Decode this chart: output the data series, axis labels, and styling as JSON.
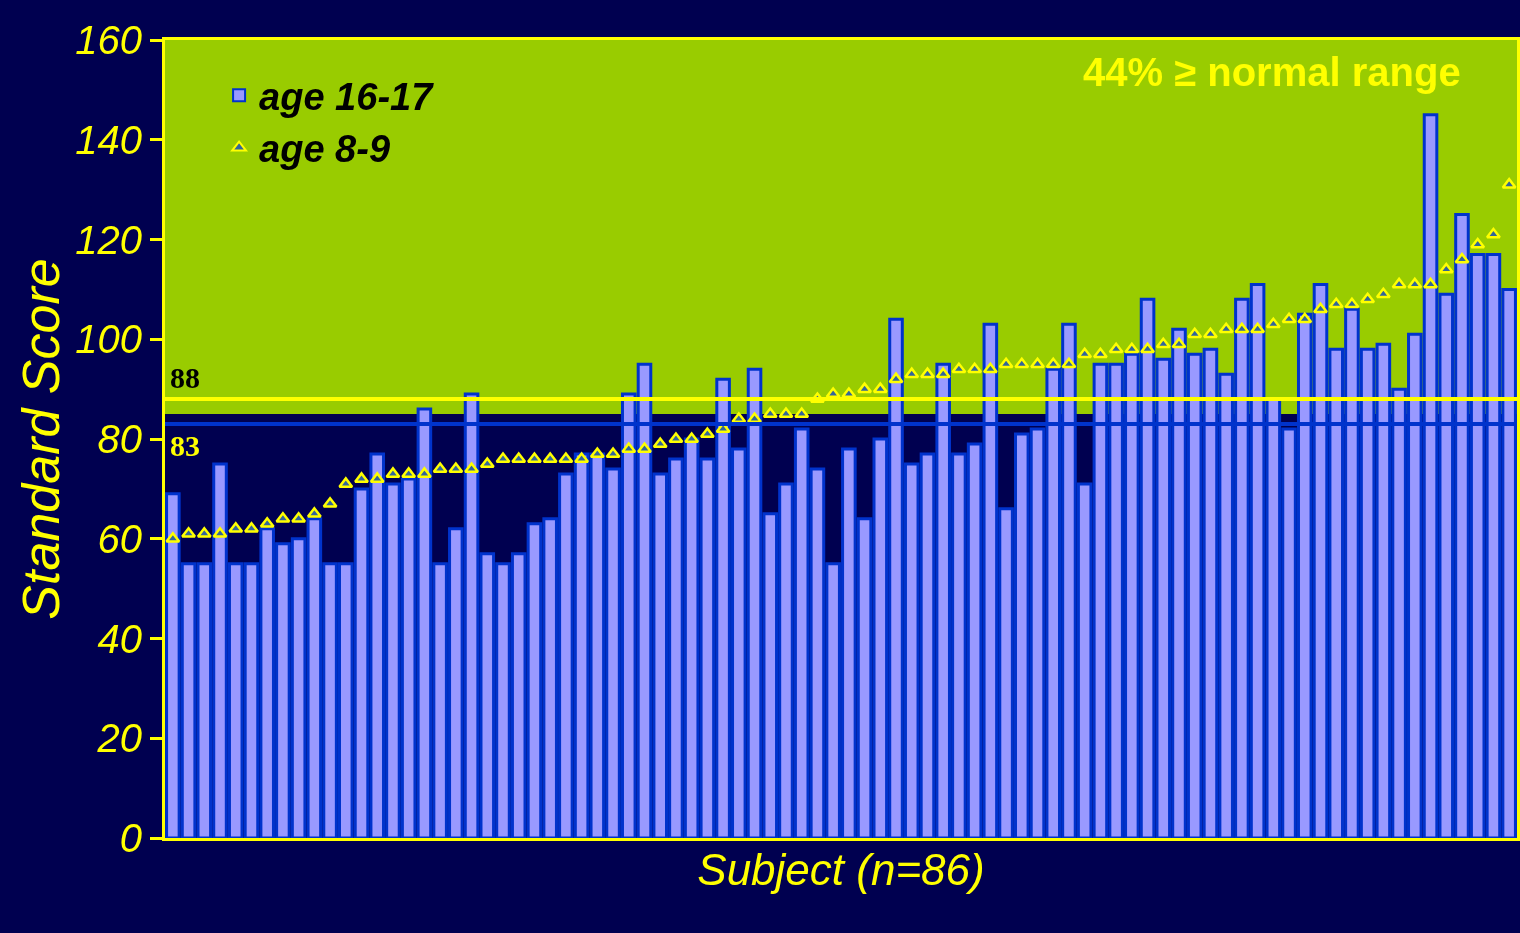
{
  "chart_data": {
    "type": "bar",
    "xlabel": "Subject (n=86)",
    "ylabel": "Standard Score",
    "categories": [
      null,
      null,
      null,
      null,
      null,
      null,
      null,
      null,
      null,
      null,
      null,
      null,
      null,
      null,
      null,
      null,
      null,
      null,
      null,
      null,
      null,
      null,
      null,
      null,
      null,
      null,
      null,
      null,
      null,
      null,
      null,
      null,
      null,
      null,
      null,
      null,
      null,
      null,
      null,
      null,
      null,
      null,
      null,
      null,
      null,
      null,
      null,
      null,
      null,
      null,
      null,
      null,
      null,
      null,
      null,
      null,
      null,
      null,
      null,
      null,
      null,
      null,
      null,
      null,
      null,
      null,
      null,
      null,
      null,
      null,
      null,
      null,
      null,
      null,
      null,
      null,
      null,
      null,
      null,
      null,
      null,
      null,
      null,
      null,
      null,
      null
    ],
    "series": [
      {
        "name": "age 16-17",
        "color": "#9999ff",
        "values": [
          69,
          55,
          55,
          75,
          55,
          55,
          62,
          59,
          60,
          64,
          55,
          55,
          70,
          77,
          71,
          72,
          86,
          55,
          62,
          89,
          57,
          55,
          57,
          63,
          64,
          73,
          77,
          77,
          74,
          89,
          95,
          73,
          76,
          80,
          76,
          92,
          78,
          94,
          65,
          71,
          82,
          74,
          55,
          78,
          64,
          80,
          104,
          75,
          77,
          95,
          77,
          79,
          103,
          66,
          81,
          82,
          94,
          103,
          71,
          95,
          95,
          97,
          108,
          96,
          102,
          97,
          98,
          93,
          108,
          111,
          88,
          82,
          105,
          111,
          98,
          106,
          98,
          99,
          90,
          101,
          145,
          109,
          125,
          117,
          117,
          110
        ]
      },
      {
        "name": "age 8-9",
        "type": "scatter",
        "marker": "triangle",
        "color": "#ffff00",
        "values": [
          60,
          61,
          61,
          61,
          62,
          62,
          63,
          64,
          64,
          65,
          67,
          71,
          72,
          72,
          73,
          73,
          73,
          74,
          74,
          74,
          75,
          76,
          76,
          76,
          76,
          76,
          76,
          77,
          77,
          78,
          78,
          79,
          80,
          80,
          81,
          82,
          84,
          84,
          85,
          85,
          85,
          88,
          89,
          89,
          90,
          90,
          92,
          93,
          93,
          93,
          94,
          94,
          94,
          95,
          95,
          95,
          95,
          95,
          97,
          97,
          98,
          98,
          98,
          99,
          99,
          101,
          101,
          102,
          102,
          102,
          103,
          104,
          104,
          106,
          107,
          107,
          108,
          109,
          111,
          111,
          111,
          114,
          116,
          119,
          121,
          131
        ]
      }
    ],
    "ylim": [
      0,
      160
    ],
    "yticks": [
      0,
      20,
      40,
      60,
      80,
      100,
      120,
      140,
      160
    ],
    "bands": [
      {
        "axis": "y",
        "from": 85,
        "to": 160,
        "color": "#99cc00"
      }
    ],
    "ref_lines": [
      {
        "axis": "y",
        "value": 88,
        "label": "88",
        "color": "#ffff00"
      },
      {
        "axis": "y",
        "value": 83,
        "label": "83",
        "color": "#0033cc"
      }
    ],
    "annotations": [
      "44% ≥ normal range"
    ],
    "tick_labels": "y",
    "grid": false,
    "legend": "top left"
  }
}
